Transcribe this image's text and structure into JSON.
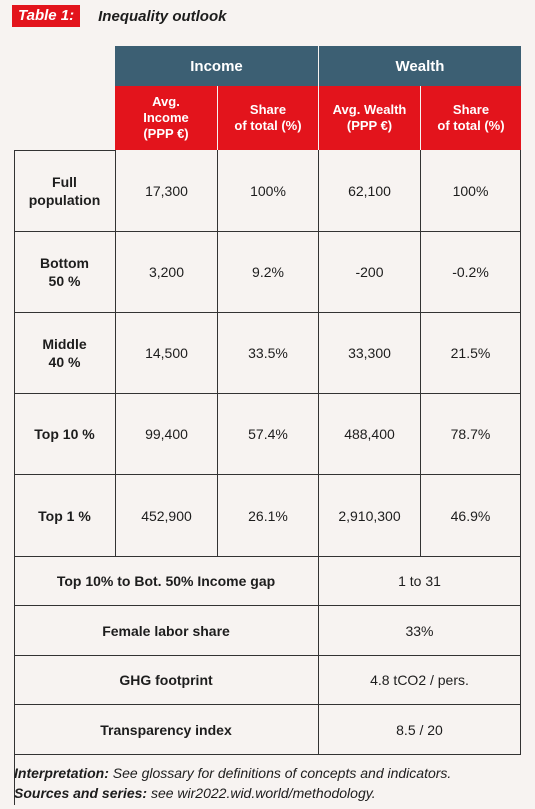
{
  "title_tag": "Table 1:",
  "title": "Inequality outlook",
  "groups": [
    "Income",
    "Wealth"
  ],
  "columns": [
    "Avg.\nIncome\n(PPP €)",
    "Share\nof total (%)",
    "Avg. Wealth\n(PPP €)",
    "Share\nof total (%)"
  ],
  "rows": [
    {
      "label": "Full\npopulation",
      "values": [
        "17,300",
        "100%",
        "62,100",
        "100%"
      ]
    },
    {
      "label": "Bottom\n50 %",
      "values": [
        "3,200",
        "9.2%",
        "-200",
        "-0.2%"
      ]
    },
    {
      "label": "Middle\n40 %",
      "values": [
        "14,500",
        "33.5%",
        "33,300",
        "21.5%"
      ]
    },
    {
      "label": "Top 10 %",
      "values": [
        "99,400",
        "57.4%",
        "488,400",
        "78.7%"
      ]
    },
    {
      "label": "Top 1 %",
      "values": [
        "452,900",
        "26.1%",
        "2,910,300",
        "46.9%"
      ]
    }
  ],
  "summary": [
    {
      "label": "Top 10% to Bot. 50% Income gap",
      "value": "1 to 31"
    },
    {
      "label": "Female labor share",
      "value": "33%"
    },
    {
      "label": "GHG footprint",
      "value": "4.8 tCO2 / pers."
    },
    {
      "label": "Transparency index",
      "value": "8.5 / 20"
    }
  ],
  "footer": {
    "interp_label": "Interpretation:",
    "interp_text": " See glossary for definitions of concepts and indicators.",
    "sources_label": "Sources and series:",
    "sources_text": " see wir2022.wid.world/methodology."
  }
}
